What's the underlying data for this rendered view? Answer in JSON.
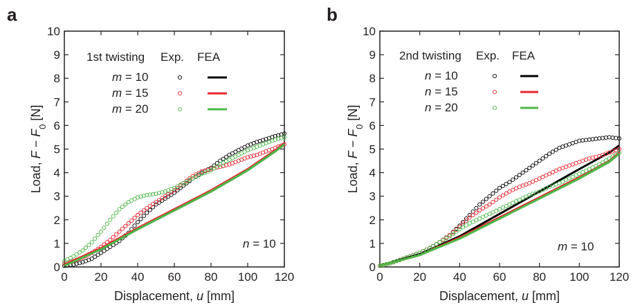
{
  "chart_data": [
    {
      "type": "scatter",
      "panel_label": "a",
      "xlabel": "Displacement,  u [mm]",
      "ylabel": "Load, F − F0 [N]",
      "xlim": [
        0,
        120
      ],
      "ylim": [
        0,
        10
      ],
      "xticks": [
        "0",
        "20",
        "40",
        "60",
        "80",
        "100",
        "120"
      ],
      "yticks": [
        "0",
        "1",
        "2",
        "3",
        "4",
        "5",
        "6",
        "7",
        "8",
        "9",
        "10"
      ],
      "grid": false,
      "legend": {
        "placement": "top-left",
        "title": "1st twisting",
        "col_exp": "Exp.",
        "col_fea": "FEA",
        "rows": [
          {
            "var": "m",
            "eq": " = 10",
            "color": "#000000"
          },
          {
            "var": "m",
            "eq": " = 15",
            "color": "#e8262f"
          },
          {
            "var": "m",
            "eq": " = 20",
            "color": "#4db848"
          }
        ]
      },
      "annotation": {
        "var": "n",
        "eq": " = 10"
      },
      "series": [
        {
          "name": "m = 10",
          "color": "#000000",
          "exp": [
            [
              0,
              0.05
            ],
            [
              5,
              0.1
            ],
            [
              10,
              0.2
            ],
            [
              15,
              0.35
            ],
            [
              20,
              0.6
            ],
            [
              25,
              0.85
            ],
            [
              30,
              1.1
            ],
            [
              35,
              1.45
            ],
            [
              40,
              1.9
            ],
            [
              45,
              2.3
            ],
            [
              50,
              2.65
            ],
            [
              55,
              2.9
            ],
            [
              60,
              3.15
            ],
            [
              65,
              3.45
            ],
            [
              70,
              3.75
            ],
            [
              75,
              4.0
            ],
            [
              80,
              4.2
            ],
            [
              85,
              4.5
            ],
            [
              90,
              4.75
            ],
            [
              95,
              4.95
            ],
            [
              100,
              5.15
            ],
            [
              105,
              5.3
            ],
            [
              110,
              5.42
            ],
            [
              115,
              5.55
            ],
            [
              120,
              5.65
            ]
          ],
          "fea": [
            [
              0,
              0.1
            ],
            [
              20,
              0.75
            ],
            [
              40,
              1.6
            ],
            [
              60,
              2.4
            ],
            [
              80,
              3.2
            ],
            [
              100,
              4.1
            ],
            [
              115,
              4.9
            ],
            [
              120,
              5.2
            ]
          ]
        },
        {
          "name": "m = 15",
          "color": "#e8262f",
          "exp": [
            [
              0,
              0.15
            ],
            [
              5,
              0.25
            ],
            [
              10,
              0.4
            ],
            [
              15,
              0.6
            ],
            [
              20,
              0.85
            ],
            [
              25,
              1.15
            ],
            [
              30,
              1.5
            ],
            [
              35,
              1.85
            ],
            [
              40,
              2.2
            ],
            [
              45,
              2.5
            ],
            [
              50,
              2.75
            ],
            [
              55,
              3.0
            ],
            [
              60,
              3.25
            ],
            [
              65,
              3.55
            ],
            [
              70,
              3.85
            ],
            [
              75,
              4.05
            ],
            [
              80,
              4.15
            ],
            [
              85,
              4.25
            ],
            [
              90,
              4.35
            ],
            [
              95,
              4.5
            ],
            [
              100,
              4.65
            ],
            [
              105,
              4.75
            ],
            [
              110,
              4.9
            ],
            [
              115,
              5.05
            ],
            [
              120,
              5.2
            ]
          ],
          "fea": [
            [
              0,
              0.1
            ],
            [
              20,
              0.8
            ],
            [
              40,
              1.65
            ],
            [
              60,
              2.45
            ],
            [
              80,
              3.25
            ],
            [
              100,
              4.15
            ],
            [
              115,
              4.95
            ],
            [
              120,
              5.25
            ]
          ]
        },
        {
          "name": "m = 20",
          "color": "#4db848",
          "exp": [
            [
              0,
              0.25
            ],
            [
              5,
              0.45
            ],
            [
              10,
              0.7
            ],
            [
              15,
              1.05
            ],
            [
              20,
              1.5
            ],
            [
              25,
              2.0
            ],
            [
              30,
              2.45
            ],
            [
              35,
              2.75
            ],
            [
              40,
              2.95
            ],
            [
              45,
              3.05
            ],
            [
              50,
              3.1
            ],
            [
              55,
              3.2
            ],
            [
              60,
              3.35
            ],
            [
              65,
              3.55
            ],
            [
              70,
              3.75
            ],
            [
              75,
              3.95
            ],
            [
              80,
              4.1
            ],
            [
              85,
              4.35
            ],
            [
              90,
              4.55
            ],
            [
              95,
              4.75
            ],
            [
              100,
              4.95
            ],
            [
              105,
              5.1
            ],
            [
              110,
              5.25
            ],
            [
              115,
              5.4
            ],
            [
              120,
              5.5
            ]
          ],
          "fea": [
            [
              0,
              0.05
            ],
            [
              20,
              0.75
            ],
            [
              40,
              1.6
            ],
            [
              60,
              2.4
            ],
            [
              80,
              3.2
            ],
            [
              100,
              4.1
            ],
            [
              115,
              4.9
            ],
            [
              120,
              5.2
            ]
          ]
        }
      ]
    },
    {
      "type": "scatter",
      "panel_label": "b",
      "xlabel": "Displacement,  u [mm]",
      "ylabel": "Load, F − F0 [N]",
      "xlim": [
        0,
        120
      ],
      "ylim": [
        0,
        10
      ],
      "xticks": [
        "0",
        "20",
        "40",
        "60",
        "80",
        "100",
        "120"
      ],
      "yticks": [
        "0",
        "1",
        "2",
        "3",
        "4",
        "5",
        "6",
        "7",
        "8",
        "9",
        "10"
      ],
      "grid": false,
      "legend": {
        "placement": "top-left",
        "title": "2nd twisting",
        "col_exp": "Exp.",
        "col_fea": "FEA",
        "rows": [
          {
            "var": "n",
            "eq": " = 10",
            "color": "#000000"
          },
          {
            "var": "n",
            "eq": " = 15",
            "color": "#e8262f"
          },
          {
            "var": "n",
            "eq": " = 20",
            "color": "#4db848"
          }
        ]
      },
      "annotation": {
        "var": "m",
        "eq": " = 10"
      },
      "series": [
        {
          "name": "n = 10",
          "color": "#000000",
          "exp": [
            [
              0,
              0.05
            ],
            [
              5,
              0.15
            ],
            [
              10,
              0.3
            ],
            [
              15,
              0.45
            ],
            [
              20,
              0.6
            ],
            [
              25,
              0.8
            ],
            [
              30,
              1.05
            ],
            [
              35,
              1.35
            ],
            [
              40,
              1.75
            ],
            [
              45,
              2.2
            ],
            [
              50,
              2.65
            ],
            [
              55,
              3.0
            ],
            [
              60,
              3.35
            ],
            [
              65,
              3.6
            ],
            [
              70,
              3.9
            ],
            [
              75,
              4.2
            ],
            [
              80,
              4.5
            ],
            [
              85,
              4.8
            ],
            [
              90,
              5.05
            ],
            [
              95,
              5.2
            ],
            [
              100,
              5.35
            ],
            [
              105,
              5.4
            ],
            [
              110,
              5.45
            ],
            [
              115,
              5.5
            ],
            [
              120,
              5.45
            ]
          ],
          "fea": [
            [
              0,
              0.05
            ],
            [
              20,
              0.55
            ],
            [
              40,
              1.3
            ],
            [
              60,
              2.25
            ],
            [
              80,
              3.2
            ],
            [
              100,
              4.15
            ],
            [
              115,
              4.85
            ],
            [
              120,
              5.15
            ]
          ]
        },
        {
          "name": "n = 15",
          "color": "#e8262f",
          "exp": [
            [
              0,
              0.05
            ],
            [
              5,
              0.15
            ],
            [
              10,
              0.3
            ],
            [
              15,
              0.45
            ],
            [
              20,
              0.6
            ],
            [
              25,
              0.8
            ],
            [
              30,
              1.05
            ],
            [
              35,
              1.35
            ],
            [
              40,
              1.7
            ],
            [
              45,
              2.1
            ],
            [
              50,
              2.4
            ],
            [
              55,
              2.65
            ],
            [
              60,
              2.95
            ],
            [
              65,
              3.2
            ],
            [
              70,
              3.4
            ],
            [
              75,
              3.55
            ],
            [
              80,
              3.75
            ],
            [
              85,
              3.95
            ],
            [
              90,
              4.15
            ],
            [
              95,
              4.3
            ],
            [
              100,
              4.45
            ],
            [
              105,
              4.6
            ],
            [
              110,
              4.7
            ],
            [
              115,
              4.85
            ],
            [
              120,
              5.0
            ]
          ],
          "fea": [
            [
              0,
              0.05
            ],
            [
              20,
              0.5
            ],
            [
              40,
              1.25
            ],
            [
              60,
              2.1
            ],
            [
              80,
              2.95
            ],
            [
              100,
              3.8
            ],
            [
              115,
              4.5
            ],
            [
              120,
              4.85
            ]
          ]
        },
        {
          "name": "n = 20",
          "color": "#4db848",
          "exp": [
            [
              0,
              0.05
            ],
            [
              5,
              0.15
            ],
            [
              10,
              0.3
            ],
            [
              15,
              0.45
            ],
            [
              20,
              0.6
            ],
            [
              25,
              0.8
            ],
            [
              30,
              1.05
            ],
            [
              35,
              1.3
            ],
            [
              40,
              1.6
            ],
            [
              45,
              1.85
            ],
            [
              50,
              2.05
            ],
            [
              55,
              2.25
            ],
            [
              60,
              2.45
            ],
            [
              65,
              2.65
            ],
            [
              70,
              2.85
            ],
            [
              75,
              3.05
            ],
            [
              80,
              3.2
            ],
            [
              85,
              3.4
            ],
            [
              90,
              3.55
            ],
            [
              95,
              3.75
            ],
            [
              100,
              3.95
            ],
            [
              105,
              4.15
            ],
            [
              110,
              4.35
            ],
            [
              115,
              4.6
            ],
            [
              120,
              4.85
            ]
          ],
          "fea": [
            [
              0,
              0.05
            ],
            [
              20,
              0.5
            ],
            [
              40,
              1.2
            ],
            [
              60,
              2.05
            ],
            [
              80,
              2.9
            ],
            [
              100,
              3.75
            ],
            [
              115,
              4.45
            ],
            [
              120,
              4.8
            ]
          ]
        }
      ]
    }
  ]
}
